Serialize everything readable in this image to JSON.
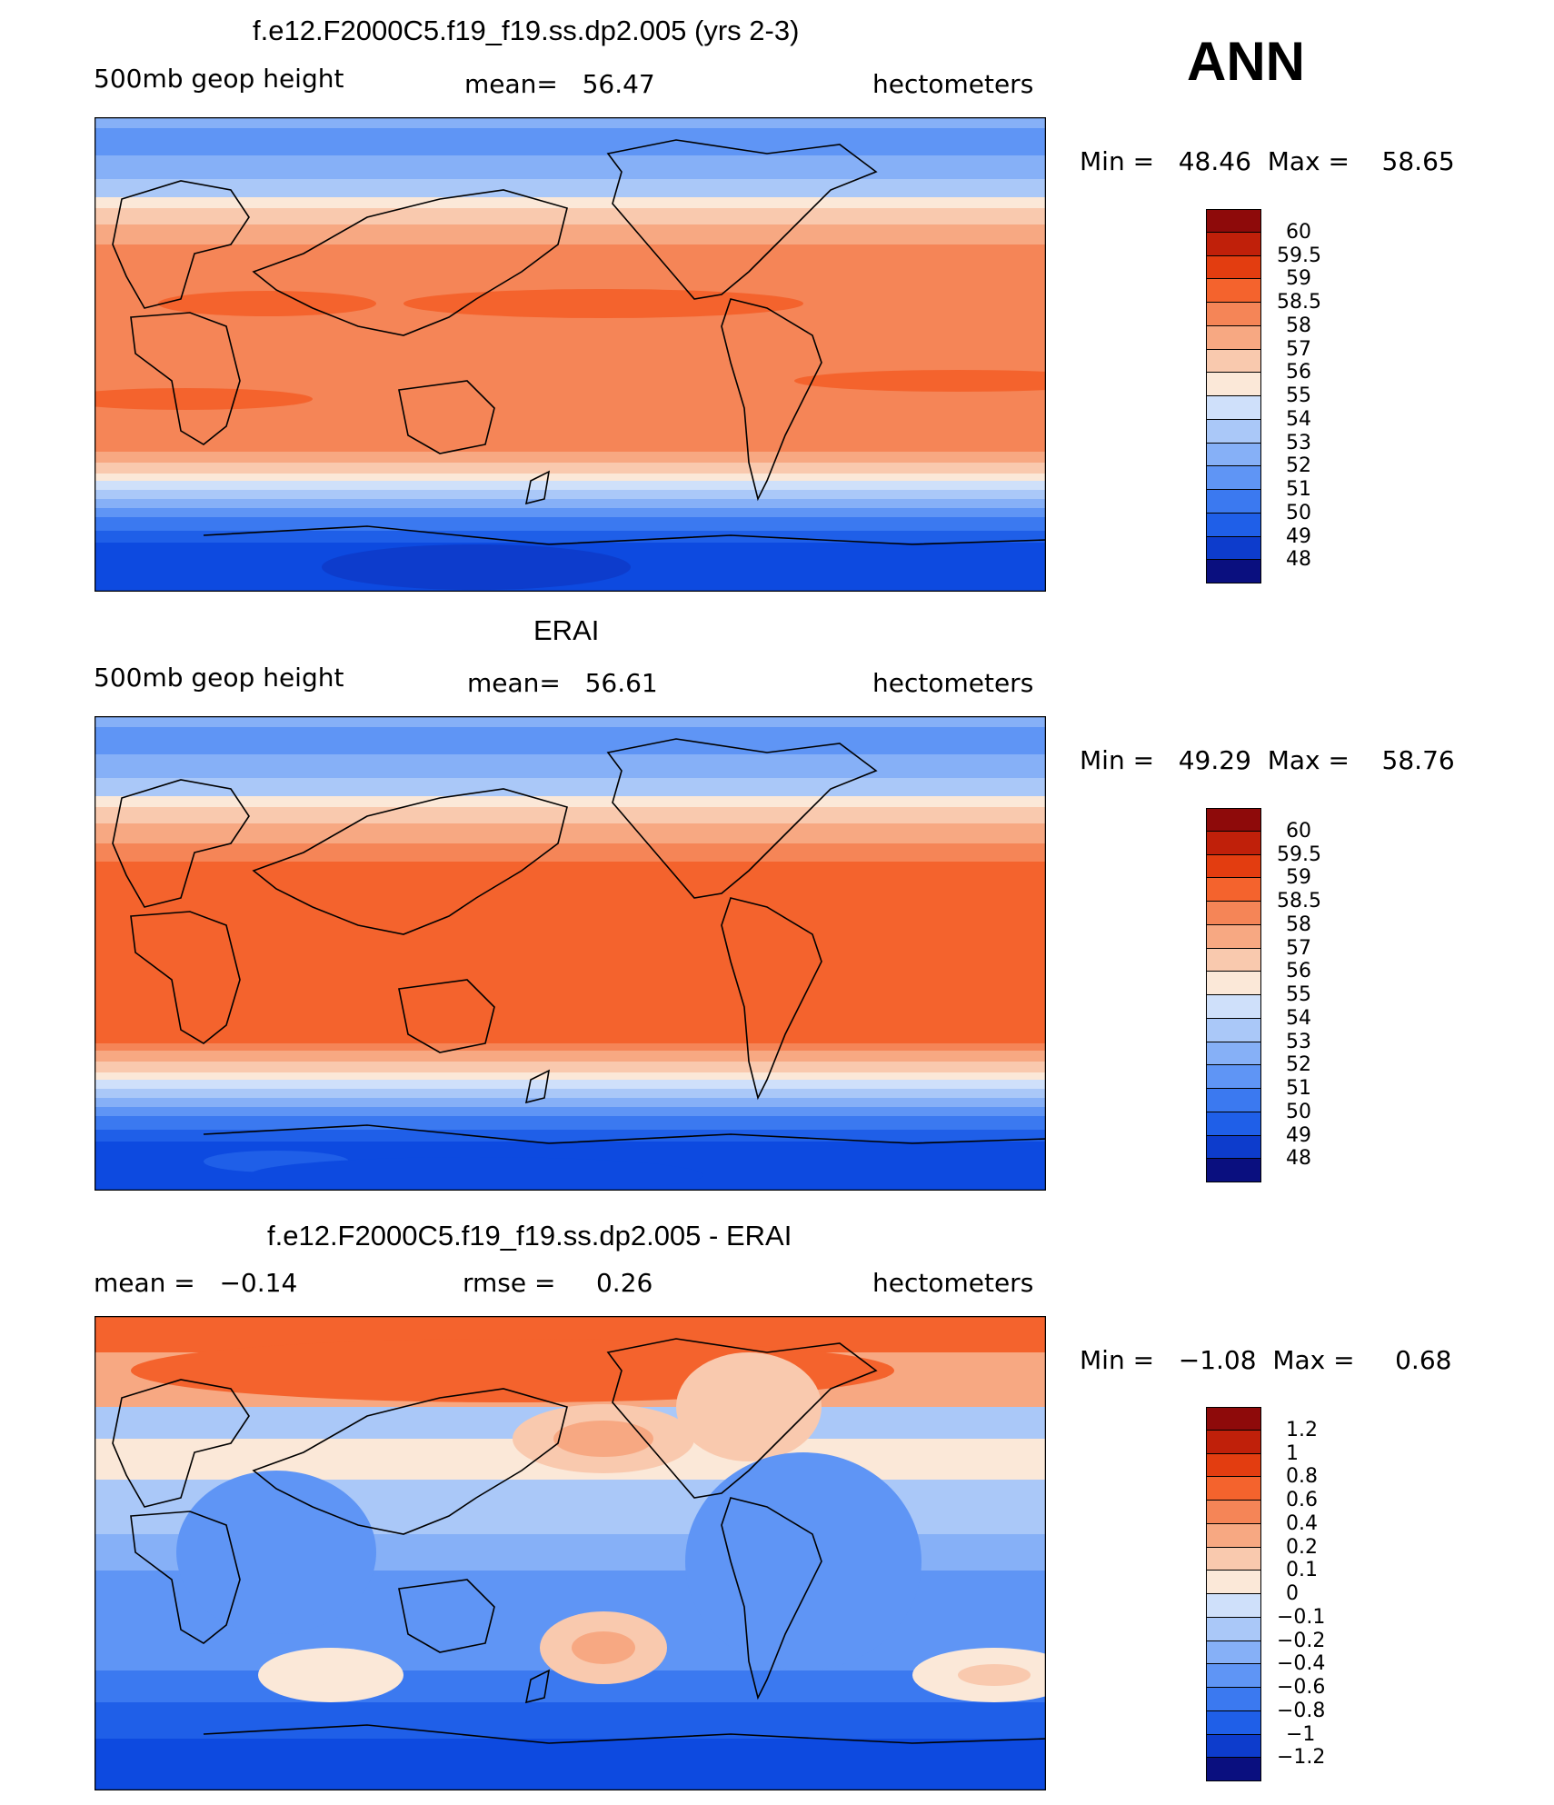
{
  "season": "ANN",
  "panels": [
    {
      "title": "f.e12.F2000C5.f19_f19.ss.dp2.005 (yrs 2-3)",
      "left_text": "500mb geop height",
      "center_text": "mean=   56.47",
      "units": "hectometers",
      "minmax": "Min =   48.46  Max =    58.65",
      "min": 48.46,
      "max": 58.65,
      "mean": 56.47
    },
    {
      "title": "ERAI",
      "left_text": "500mb geop height",
      "center_text": "mean=   56.61",
      "units": "hectometers",
      "minmax": "Min =   49.29  Max =    58.76",
      "min": 49.29,
      "max": 58.76,
      "mean": 56.61
    },
    {
      "title": "f.e12.F2000C5.f19_f19.ss.dp2.005 - ERAI",
      "left_text": "mean =   −0.14",
      "center_text": "rmse =     0.26",
      "units": "hectometers",
      "minmax": "Min =   −1.08  Max =     0.68",
      "min": -1.08,
      "max": 0.68,
      "mean": -0.14,
      "rmse": 0.26
    }
  ],
  "colors": {
    "palette": [
      "#0a0f7f",
      "#0a2ea8",
      "#0d3ccc",
      "#0d4ae0",
      "#1f5fe8",
      "#3b79f0",
      "#5f95f5",
      "#86b0f7",
      "#aac8f8",
      "#cfe0fa",
      "#fbe8d8",
      "#f9c9ae",
      "#f7a882",
      "#f58557",
      "#f4632d",
      "#e33d10",
      "#c0200a",
      "#8e0a0a"
    ]
  },
  "chart_data": [
    {
      "type": "contour",
      "title": "f.e12.F2000C5.f19_f19.ss.dp2.005 (yrs 2-3)",
      "variable": "500mb geop height",
      "units": "hectometers",
      "mean": 56.47,
      "min": 48.46,
      "max": 58.65,
      "levels": [
        "48",
        "49",
        "50",
        "51",
        "52",
        "53",
        "54",
        "55",
        "56",
        "57",
        "58",
        "58.5",
        "59",
        "59.5",
        "60"
      ]
    },
    {
      "type": "contour",
      "title": "ERAI",
      "variable": "500mb geop height",
      "units": "hectometers",
      "mean": 56.61,
      "min": 49.29,
      "max": 58.76,
      "levels": [
        "48",
        "49",
        "50",
        "51",
        "52",
        "53",
        "54",
        "55",
        "56",
        "57",
        "58",
        "58.5",
        "59",
        "59.5",
        "60"
      ]
    },
    {
      "type": "contour",
      "title": "f.e12.F2000C5.f19_f19.ss.dp2.005 - ERAI",
      "units": "hectometers",
      "mean": -0.14,
      "rmse": 0.26,
      "min": -1.08,
      "max": 0.68,
      "levels": [
        "−1.2",
        "−1",
        "−0.8",
        "−0.6",
        "−0.4",
        "−0.2",
        "−0.1",
        "0",
        "0.1",
        "0.2",
        "0.4",
        "0.6",
        "0.8",
        "1",
        "1.2"
      ]
    }
  ]
}
